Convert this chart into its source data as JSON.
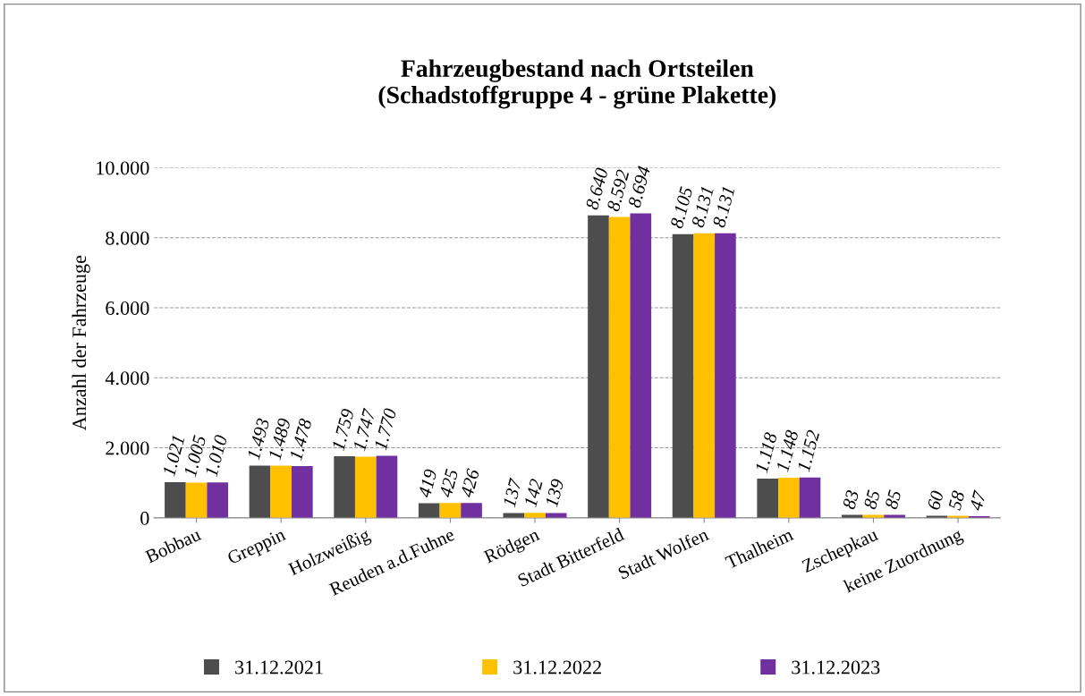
{
  "chart_data": {
    "type": "bar",
    "title": "Fahrzeugbestand nach Ortsteilen\n(Schadstoffgruppe 4 - grüne Plakette)",
    "ylabel": "Anzahl der Fahrzeuge",
    "categories": [
      "Bobbau",
      "Greppin",
      "Holzweißig",
      "Reuden a.d.Fuhne",
      "Rödgen",
      "Stadt Bitterfeld",
      "Stadt Wolfen",
      "Thalheim",
      "Zschepkau",
      "keine Zuordnung"
    ],
    "series": [
      {
        "name": "31.12.2021",
        "color": "#4d4d4d",
        "values": [
          1021,
          1493,
          1759,
          419,
          137,
          8640,
          8105,
          1118,
          83,
          60
        ],
        "value_labels": [
          "1.021",
          "1.493",
          "1.759",
          "419",
          "137",
          "8.640",
          "8.105",
          "1.118",
          "83",
          "60"
        ]
      },
      {
        "name": "31.12.2022",
        "color": "#ffc000",
        "values": [
          1005,
          1489,
          1747,
          425,
          142,
          8592,
          8131,
          1148,
          85,
          58
        ],
        "value_labels": [
          "1.005",
          "1.489",
          "1.747",
          "425",
          "142",
          "8.592",
          "8.131",
          "1.148",
          "85",
          "58"
        ]
      },
      {
        "name": "31.12.2023",
        "color": "#7030a0",
        "values": [
          1010,
          1478,
          1770,
          426,
          139,
          8694,
          8131,
          1152,
          85,
          47
        ],
        "value_labels": [
          "1.010",
          "1.478",
          "1.770",
          "426",
          "139",
          "8.694",
          "8.131",
          "1.152",
          "85",
          "47"
        ]
      }
    ],
    "ylim": [
      0,
      10000
    ],
    "yticks": [
      {
        "value": 0,
        "label": "0"
      },
      {
        "value": 2000,
        "label": "2.000"
      },
      {
        "value": 4000,
        "label": "4.000"
      },
      {
        "value": 6000,
        "label": "6.000"
      },
      {
        "value": 8000,
        "label": "8.000"
      },
      {
        "value": 10000,
        "label": "10.000"
      }
    ],
    "grid": "y",
    "legend": "bottom"
  }
}
